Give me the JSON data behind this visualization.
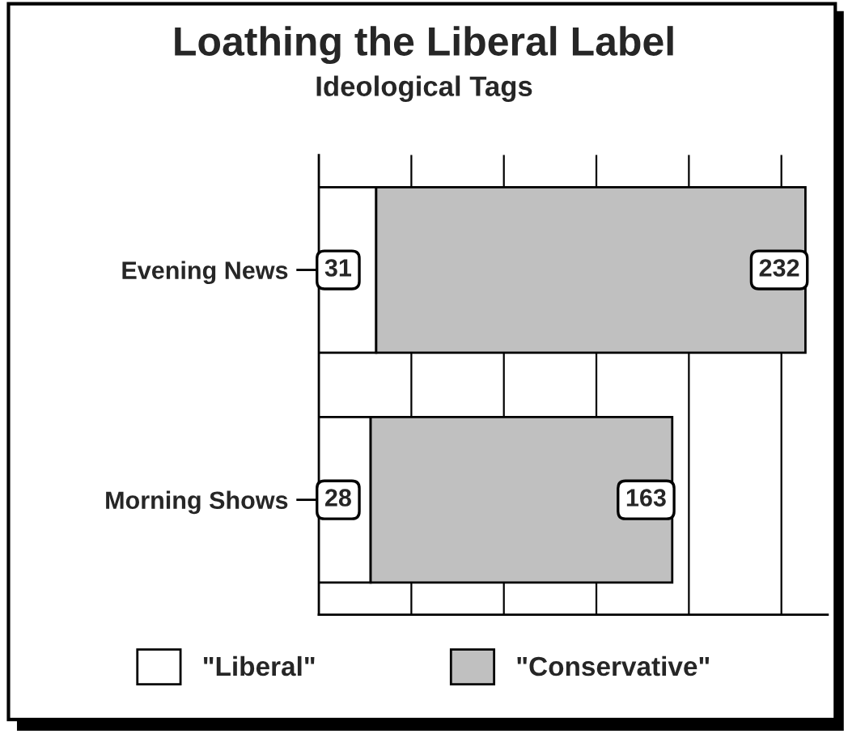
{
  "chart_data": {
    "type": "bar",
    "title": "Loathing the Liberal Label",
    "subtitle": "Ideological Tags",
    "orientation": "horizontal",
    "stacked": true,
    "categories": [
      "Evening News",
      "Morning Shows"
    ],
    "series": [
      {
        "name": "\"Liberal\"",
        "color": "#ffffff",
        "values": [
          31,
          28
        ]
      },
      {
        "name": "\"Conservative\"",
        "color": "#c0c0c0",
        "values": [
          232,
          163
        ]
      }
    ],
    "xlim": [
      0,
      275
    ],
    "xticks": [
      {
        "value": 50,
        "label": null
      },
      {
        "value": 100,
        "label": null
      },
      {
        "value": 150,
        "label": null
      },
      {
        "value": 200,
        "label": null
      },
      {
        "value": 250,
        "label": null
      }
    ],
    "grid": "x",
    "legend": "bottom",
    "data_labels": true
  }
}
